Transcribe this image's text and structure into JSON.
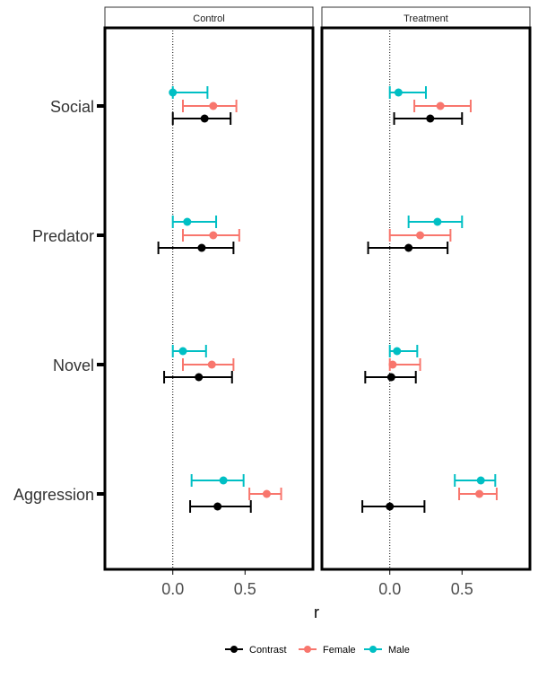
{
  "chart_data": {
    "type": "dot-errorbar",
    "xlabel": "r",
    "x_ticks": [
      0.0,
      0.5
    ],
    "x_tick_labels": [
      "0.0",
      "0.5"
    ],
    "xlim": [
      -0.47,
      0.97
    ],
    "reference_line": 0,
    "categories": [
      "Aggression",
      "Novel",
      "Predator",
      "Social"
    ],
    "panels": [
      {
        "name": "Control",
        "series": [
          {
            "name": "Contrast",
            "color": "#000000",
            "points": [
              {
                "category": "Aggression",
                "estimate": 0.31,
                "lower": 0.12,
                "upper": 0.54
              },
              {
                "category": "Novel",
                "estimate": 0.18,
                "lower": -0.06,
                "upper": 0.41
              },
              {
                "category": "Predator",
                "estimate": 0.2,
                "lower": -0.1,
                "upper": 0.42
              },
              {
                "category": "Social",
                "estimate": 0.22,
                "lower": 0.0,
                "upper": 0.4
              }
            ]
          },
          {
            "name": "Female",
            "color": "#F8766D",
            "points": [
              {
                "category": "Aggression",
                "estimate": 0.65,
                "lower": 0.53,
                "upper": 0.75
              },
              {
                "category": "Novel",
                "estimate": 0.27,
                "lower": 0.07,
                "upper": 0.42
              },
              {
                "category": "Predator",
                "estimate": 0.28,
                "lower": 0.07,
                "upper": 0.46
              },
              {
                "category": "Social",
                "estimate": 0.28,
                "lower": 0.07,
                "upper": 0.44
              }
            ]
          },
          {
            "name": "Male",
            "color": "#00BFC4",
            "points": [
              {
                "category": "Aggression",
                "estimate": 0.35,
                "lower": 0.13,
                "upper": 0.49
              },
              {
                "category": "Novel",
                "estimate": 0.07,
                "lower": 0.0,
                "upper": 0.23
              },
              {
                "category": "Predator",
                "estimate": 0.1,
                "lower": 0.0,
                "upper": 0.3
              },
              {
                "category": "Social",
                "estimate": 0.0,
                "lower": 0.0,
                "upper": 0.24
              }
            ]
          }
        ]
      },
      {
        "name": "Treatment",
        "series": [
          {
            "name": "Contrast",
            "color": "#000000",
            "points": [
              {
                "category": "Aggression",
                "estimate": 0.0,
                "lower": -0.19,
                "upper": 0.24
              },
              {
                "category": "Novel",
                "estimate": 0.01,
                "lower": -0.17,
                "upper": 0.18
              },
              {
                "category": "Predator",
                "estimate": 0.13,
                "lower": -0.15,
                "upper": 0.4
              },
              {
                "category": "Social",
                "estimate": 0.28,
                "lower": 0.03,
                "upper": 0.5
              }
            ]
          },
          {
            "name": "Female",
            "color": "#F8766D",
            "points": [
              {
                "category": "Aggression",
                "estimate": 0.62,
                "lower": 0.48,
                "upper": 0.74
              },
              {
                "category": "Novel",
                "estimate": 0.02,
                "lower": 0.0,
                "upper": 0.21
              },
              {
                "category": "Predator",
                "estimate": 0.21,
                "lower": 0.0,
                "upper": 0.42
              },
              {
                "category": "Social",
                "estimate": 0.35,
                "lower": 0.17,
                "upper": 0.56
              }
            ]
          },
          {
            "name": "Male",
            "color": "#00BFC4",
            "points": [
              {
                "category": "Aggression",
                "estimate": 0.63,
                "lower": 0.45,
                "upper": 0.73
              },
              {
                "category": "Novel",
                "estimate": 0.05,
                "lower": 0.0,
                "upper": 0.19
              },
              {
                "category": "Predator",
                "estimate": 0.33,
                "lower": 0.13,
                "upper": 0.5
              },
              {
                "category": "Social",
                "estimate": 0.06,
                "lower": 0.0,
                "upper": 0.25
              }
            ]
          }
        ]
      }
    ],
    "legend": {
      "position": "bottom",
      "entries": [
        {
          "label": "Contrast",
          "color": "#000000"
        },
        {
          "label": "Female",
          "color": "#F8766D"
        },
        {
          "label": "Male",
          "color": "#00BFC4"
        }
      ]
    }
  }
}
